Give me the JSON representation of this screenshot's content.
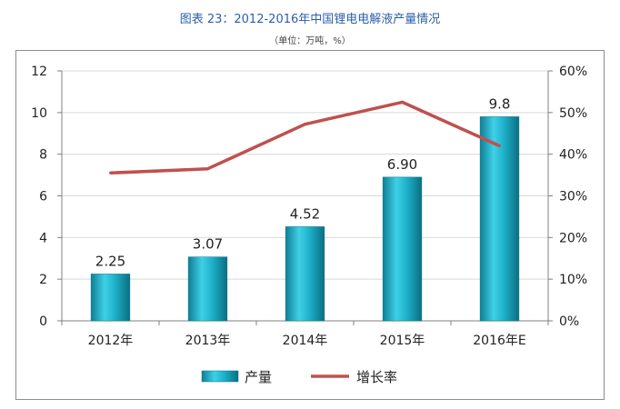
{
  "header": {
    "title": "图表 23：2012-2016年中国锂电电解液产量情况",
    "subtitle": "（单位：万吨，%）"
  },
  "chart_data": {
    "type": "bar",
    "categories": [
      "2012年",
      "2013年",
      "2014年",
      "2015年",
      "2016年E"
    ],
    "series": [
      {
        "name": "产量",
        "type": "bar",
        "axis": "left",
        "values": [
          2.25,
          3.07,
          4.52,
          6.9,
          9.8
        ],
        "data_labels": [
          "2.25",
          "3.07",
          "4.52",
          "6.90",
          "9.8"
        ],
        "color": "#1aa7bf"
      },
      {
        "name": "增长率",
        "type": "line",
        "axis": "right",
        "values": [
          35.5,
          36.5,
          47.2,
          52.5,
          42.0
        ],
        "color": "#c0504d"
      }
    ],
    "y_left": {
      "min": 0,
      "max": 12,
      "ticks": [
        "0",
        "2",
        "4",
        "6",
        "8",
        "10",
        "12"
      ]
    },
    "y_right": {
      "min": 0,
      "max": 60,
      "ticks": [
        "0%",
        "10%",
        "20%",
        "30%",
        "40%",
        "50%",
        "60%"
      ]
    },
    "grid": true,
    "legend_position": "bottom"
  }
}
